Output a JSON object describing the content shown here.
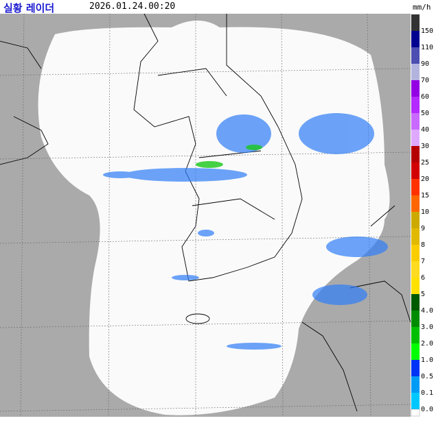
{
  "header": {
    "title": "실황 레이더",
    "time": "2026.01.24.00:20",
    "unit": "mm/h"
  },
  "legend": [
    {
      "label": "150",
      "color": "#333333"
    },
    {
      "label": "110",
      "color": "#000390"
    },
    {
      "label": "90",
      "color": "#4c4eb1"
    },
    {
      "label": "70",
      "color": "#b3b4de"
    },
    {
      "label": "60",
      "color": "#9300e4"
    },
    {
      "label": "50",
      "color": "#b329ff"
    },
    {
      "label": "40",
      "color": "#c969ff"
    },
    {
      "label": "30",
      "color": "#dfa9ff"
    },
    {
      "label": "25",
      "color": "#b40000"
    },
    {
      "label": "20",
      "color": "#d20000"
    },
    {
      "label": "15",
      "color": "#ff3200"
    },
    {
      "label": "10",
      "color": "#ff6600"
    },
    {
      "label": "9",
      "color": "#ccaa00"
    },
    {
      "label": "8",
      "color": "#e0b900"
    },
    {
      "label": "7",
      "color": "#f9cd00"
    },
    {
      "label": "6",
      "color": "#ffdc1f"
    },
    {
      "label": "5",
      "color": "#ffe100"
    },
    {
      "label": "4.0",
      "color": "#005a00"
    },
    {
      "label": "3.0",
      "color": "#008c00"
    },
    {
      "label": "2.0",
      "color": "#00be00"
    },
    {
      "label": "1.0",
      "color": "#00ff00"
    },
    {
      "label": "0.5",
      "color": "#0033f5"
    },
    {
      "label": "0.1",
      "color": "#009bf5"
    },
    {
      "label": "0.0",
      "color": "#00c8ff"
    }
  ]
}
